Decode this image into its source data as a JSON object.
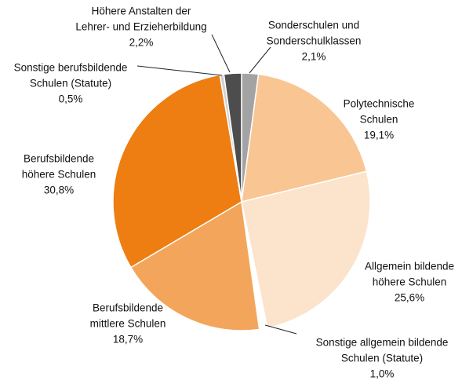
{
  "chart_data": {
    "type": "pie",
    "categories": [
      [
        "Sonderschulen und",
        "Sonderschulklassen"
      ],
      [
        "Polytechnische",
        "Schulen"
      ],
      [
        "Allgemein bildende",
        "höhere Schulen"
      ],
      [
        "Sonstige allgemein bildende",
        "Schulen (Statute)"
      ],
      [
        "Berufsbildende",
        "mittlere Schulen"
      ],
      [
        "Berufsbildende",
        "höhere Schulen"
      ],
      [
        "Sonstige berufsbildende",
        "Schulen (Statute)"
      ],
      [
        "Höhere Anstalten der",
        "Lehrer- und Erzieherbildung"
      ]
    ],
    "values": [
      2.1,
      19.1,
      25.6,
      1.0,
      18.7,
      30.8,
      0.5,
      2.2
    ],
    "value_labels": [
      "2,1%",
      "19,1%",
      "25,6%",
      "1,0%",
      "18,7%",
      "30,8%",
      "0,5%",
      "2,2%"
    ],
    "colors": [
      "#a3a3a3",
      "#f9c593",
      "#fce3cc",
      "#ffffff",
      "#f3a55b",
      "#ee7d12",
      "#d2d2d2",
      "#4d4d4d"
    ]
  }
}
